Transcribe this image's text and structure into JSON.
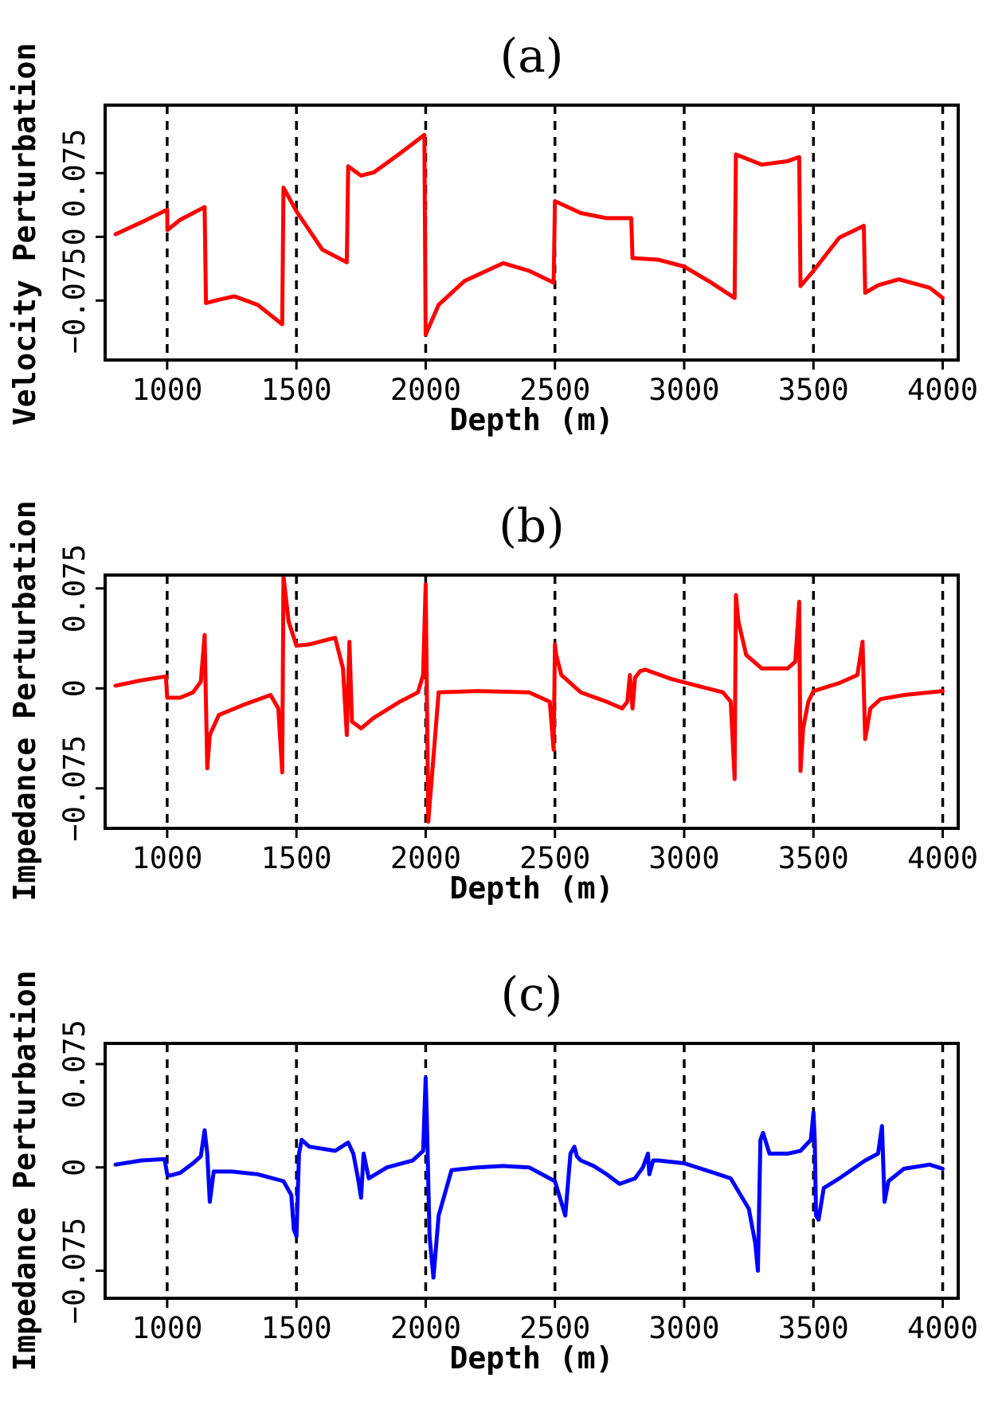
{
  "chart_data": [
    {
      "type": "line",
      "panel_label": "(a)",
      "xlabel": "Depth (m)",
      "ylabel": "Velocity Perturbation",
      "xlim": [
        760,
        4060
      ],
      "ylim": [
        -0.145,
        0.155
      ],
      "xticks": [
        1000,
        1500,
        2000,
        2500,
        3000,
        3500,
        4000
      ],
      "yticks": [
        -0.075,
        0,
        0.075
      ],
      "ytick_labels": [
        "−0.075",
        "0",
        "0.075"
      ],
      "vlines": [
        1000,
        1500,
        2000,
        2500,
        3000,
        3500,
        4000
      ],
      "color": "#ff0000",
      "series": [
        {
          "name": "velocity perturbation",
          "x": [
            800,
            900,
            1000,
            1001,
            1050,
            1145,
            1150,
            1200,
            1260,
            1350,
            1445,
            1450,
            1500,
            1600,
            1695,
            1700,
            1750,
            1800,
            1900,
            1995,
            2000,
            2050,
            2150,
            2300,
            2400,
            2495,
            2500,
            2600,
            2700,
            2795,
            2800,
            2900,
            3000,
            3100,
            3195,
            3200,
            3300,
            3400,
            3445,
            3450,
            3500,
            3600,
            3695,
            3700,
            3750,
            3830,
            3950,
            4000
          ],
          "y": [
            0.003,
            0.017,
            0.032,
            0.008,
            0.02,
            0.035,
            -0.078,
            -0.074,
            -0.07,
            -0.08,
            -0.103,
            0.058,
            0.03,
            -0.015,
            -0.03,
            0.083,
            0.072,
            0.076,
            0.098,
            0.12,
            -0.115,
            -0.08,
            -0.052,
            -0.031,
            -0.04,
            -0.054,
            0.042,
            0.028,
            0.022,
            0.022,
            -0.025,
            -0.027,
            -0.035,
            -0.053,
            -0.072,
            0.097,
            0.085,
            0.089,
            0.094,
            -0.058,
            -0.04,
            -0.001,
            0.013,
            -0.066,
            -0.057,
            -0.05,
            -0.06,
            -0.072
          ]
        }
      ]
    },
    {
      "type": "line",
      "panel_label": "(b)",
      "xlabel": "Depth (m)",
      "ylabel": "Impedance Perturbation",
      "xlim": [
        760,
        4060
      ],
      "ylim": [
        -0.105,
        0.085
      ],
      "xticks": [
        1000,
        1500,
        2000,
        2500,
        3000,
        3500,
        4000
      ],
      "yticks": [
        -0.075,
        0,
        0.075
      ],
      "ytick_labels": [
        "−0.075",
        "0",
        "0.075"
      ],
      "vlines": [
        1000,
        1500,
        2000,
        2500,
        3000,
        3500,
        4000
      ],
      "color": "#ff0000",
      "series": [
        {
          "name": "impedance perturbation",
          "x": [
            800,
            900,
            995,
            1000,
            1050,
            1100,
            1130,
            1145,
            1155,
            1165,
            1200,
            1300,
            1400,
            1430,
            1445,
            1450,
            1470,
            1500,
            1550,
            1650,
            1680,
            1695,
            1705,
            1715,
            1730,
            1750,
            1800,
            1900,
            1970,
            1990,
            2000,
            2010,
            2050,
            2200,
            2400,
            2480,
            2495,
            2500,
            2505,
            2525,
            2600,
            2700,
            2760,
            2780,
            2790,
            2800,
            2810,
            2830,
            2850,
            2950,
            3050,
            3150,
            3180,
            3195,
            3200,
            3210,
            3240,
            3300,
            3400,
            3430,
            3445,
            3450,
            3460,
            3480,
            3500,
            3600,
            3670,
            3690,
            3700,
            3720,
            3760,
            3850,
            4000
          ],
          "y": [
            0.002,
            0.006,
            0.009,
            -0.007,
            -0.007,
            -0.003,
            0.005,
            0.04,
            -0.06,
            -0.035,
            -0.02,
            -0.012,
            -0.005,
            -0.015,
            -0.063,
            0.084,
            0.05,
            0.032,
            0.033,
            0.038,
            0.015,
            -0.035,
            0.035,
            -0.025,
            -0.027,
            -0.03,
            -0.022,
            -0.01,
            -0.003,
            0.01,
            0.078,
            -0.1,
            -0.003,
            -0.002,
            -0.003,
            -0.01,
            -0.046,
            0.033,
            0.025,
            0.01,
            -0.003,
            -0.01,
            -0.015,
            -0.01,
            0.01,
            -0.015,
            0.008,
            0.013,
            0.014,
            0.007,
            0.002,
            -0.003,
            -0.01,
            -0.068,
            0.07,
            0.05,
            0.025,
            0.015,
            0.015,
            0.02,
            0.065,
            -0.062,
            -0.03,
            -0.01,
            -0.002,
            0.004,
            0.01,
            0.035,
            -0.038,
            -0.015,
            -0.008,
            -0.005,
            -0.002
          ]
        }
      ]
    },
    {
      "type": "line",
      "panel_label": "(c)",
      "xlabel": "Depth (m)",
      "ylabel": "Impedance Perturbation",
      "xlim": [
        760,
        4060
      ],
      "ylim": [
        -0.095,
        0.09
      ],
      "xticks": [
        1000,
        1500,
        2000,
        2500,
        3000,
        3500,
        4000
      ],
      "yticks": [
        -0.075,
        0,
        0.075
      ],
      "ytick_labels": [
        "−0.075",
        "0",
        "0.075"
      ],
      "vlines": [
        1000,
        1500,
        2000,
        2500,
        3000,
        3500,
        4000
      ],
      "color": "#0000ff",
      "series": [
        {
          "name": "estimated impedance perturbation",
          "x": [
            800,
            900,
            990,
            1000,
            1010,
            1050,
            1100,
            1130,
            1145,
            1155,
            1165,
            1180,
            1250,
            1350,
            1450,
            1480,
            1490,
            1500,
            1510,
            1520,
            1550,
            1650,
            1700,
            1720,
            1740,
            1750,
            1760,
            1780,
            1850,
            1950,
            1990,
            2000,
            2005,
            2015,
            2025,
            2030,
            2050,
            2100,
            2200,
            2300,
            2400,
            2500,
            2540,
            2560,
            2575,
            2585,
            2600,
            2650,
            2700,
            2750,
            2810,
            2840,
            2860,
            2865,
            2880,
            2900,
            3000,
            3100,
            3180,
            3250,
            3275,
            3285,
            3295,
            3305,
            3330,
            3400,
            3450,
            3490,
            3500,
            3505,
            3510,
            3520,
            3540,
            3600,
            3700,
            3750,
            3765,
            3775,
            3790,
            3850,
            3950,
            4000
          ],
          "y": [
            0.002,
            0.005,
            0.006,
            -0.005,
            -0.006,
            -0.004,
            0.003,
            0.008,
            0.027,
            0.01,
            -0.025,
            -0.003,
            -0.003,
            -0.005,
            -0.01,
            -0.02,
            -0.045,
            -0.05,
            0.01,
            0.02,
            0.015,
            0.012,
            0.018,
            0.01,
            -0.01,
            -0.022,
            0.01,
            -0.008,
            0.0,
            0.005,
            0.012,
            0.065,
            0.03,
            -0.05,
            -0.07,
            -0.08,
            -0.035,
            -0.002,
            0.0,
            0.001,
            0.0,
            -0.01,
            -0.035,
            0.01,
            0.015,
            0.008,
            0.005,
            0.001,
            -0.005,
            -0.012,
            -0.008,
            0.0,
            0.01,
            -0.005,
            0.005,
            0.005,
            0.003,
            -0.003,
            -0.008,
            -0.03,
            -0.055,
            -0.075,
            0.02,
            0.025,
            0.01,
            0.01,
            0.012,
            0.02,
            0.04,
            0.02,
            -0.035,
            -0.038,
            -0.015,
            -0.008,
            0.005,
            0.01,
            0.03,
            -0.025,
            -0.01,
            -0.001,
            0.002,
            -0.001
          ]
        }
      ]
    }
  ]
}
